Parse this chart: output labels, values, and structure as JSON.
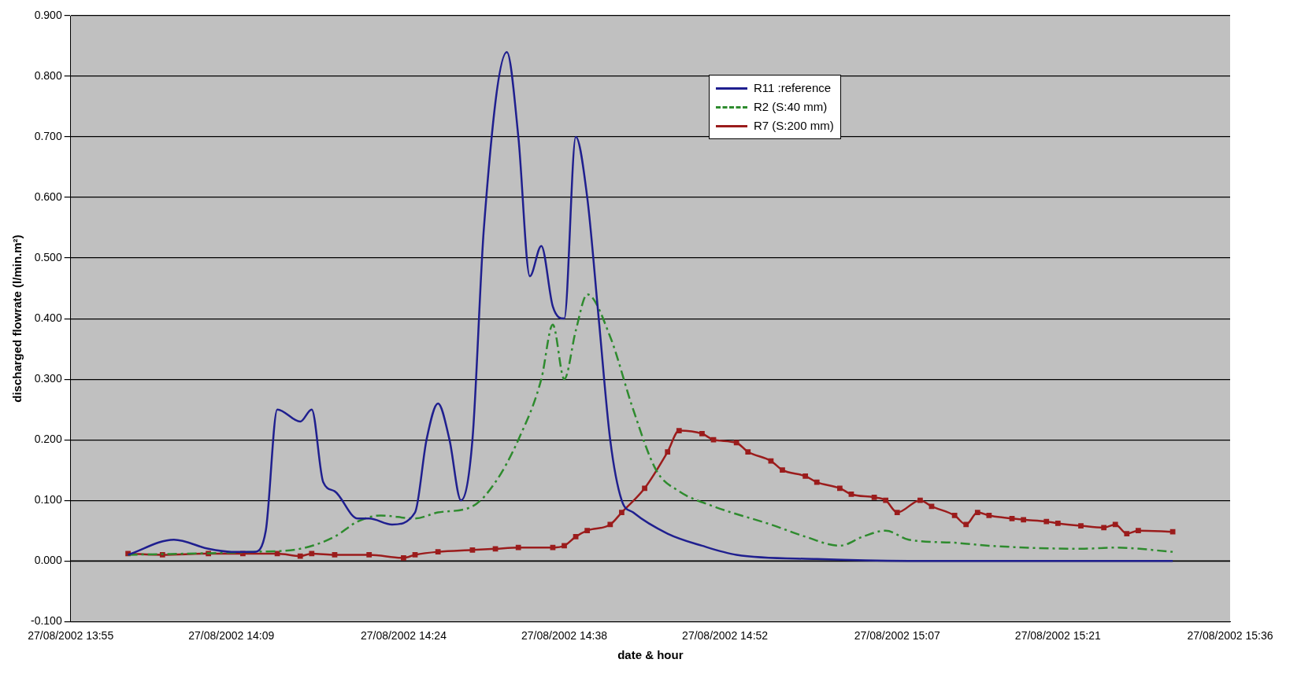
{
  "chart_data": {
    "type": "line",
    "xlabel": "date & hour",
    "ylabel": "discharged flowrate (l/min.m²)",
    "xlim": [
      "2002-08-27T13:55",
      "2002-08-27T15:36"
    ],
    "xticks": [
      {
        "value": "2002-08-27T13:55",
        "label": "27/08/2002 13:55"
      },
      {
        "value": "2002-08-27T14:09",
        "label": "27/08/2002 14:09"
      },
      {
        "value": "2002-08-27T14:24",
        "label": "27/08/2002 14:24"
      },
      {
        "value": "2002-08-27T14:38",
        "label": "27/08/2002 14:38"
      },
      {
        "value": "2002-08-27T14:52",
        "label": "27/08/2002 14:52"
      },
      {
        "value": "2002-08-27T15:07",
        "label": "27/08/2002 15:07"
      },
      {
        "value": "2002-08-27T15:21",
        "label": "27/08/2002 15:21"
      },
      {
        "value": "2002-08-27T15:36",
        "label": "27/08/2002 15:36"
      }
    ],
    "ylim": [
      -0.1,
      0.9
    ],
    "yticks": [
      {
        "value": -0.1,
        "label": "-0.100"
      },
      {
        "value": 0,
        "label": "0.000"
      },
      {
        "value": 0.1,
        "label": "0.100"
      },
      {
        "value": 0.2,
        "label": "0.200"
      },
      {
        "value": 0.3,
        "label": "0.300"
      },
      {
        "value": 0.4,
        "label": "0.400"
      },
      {
        "value": 0.5,
        "label": "0.500"
      },
      {
        "value": 0.6,
        "label": "0.600"
      },
      {
        "value": 0.7,
        "label": "0.700"
      },
      {
        "value": 0.8,
        "label": "0.800"
      },
      {
        "value": 0.9,
        "label": "0.900"
      }
    ],
    "grid": "y",
    "legend": "top",
    "series": [
      {
        "name": "R11 :reference",
        "color": "#1f1f8f",
        "marker": "none",
        "line_style": "solid",
        "x": [
          "2002-08-27T14:00",
          "2002-08-27T14:04",
          "2002-08-27T14:07",
          "2002-08-27T14:09",
          "2002-08-27T14:11",
          "2002-08-27T14:12",
          "2002-08-27T14:13",
          "2002-08-27T14:15",
          "2002-08-27T14:16",
          "2002-08-27T14:17",
          "2002-08-27T14:18",
          "2002-08-27T14:20",
          "2002-08-27T14:21",
          "2002-08-27T14:23",
          "2002-08-27T14:25",
          "2002-08-27T14:26",
          "2002-08-27T14:27",
          "2002-08-27T14:28",
          "2002-08-27T14:29",
          "2002-08-27T14:30",
          "2002-08-27T14:31",
          "2002-08-27T14:33",
          "2002-08-27T14:34",
          "2002-08-27T14:35",
          "2002-08-27T14:36",
          "2002-08-27T14:37",
          "2002-08-27T14:38",
          "2002-08-27T14:39",
          "2002-08-27T14:40",
          "2002-08-27T14:41",
          "2002-08-27T14:42",
          "2002-08-27T14:43",
          "2002-08-27T14:44",
          "2002-08-27T14:47",
          "2002-08-27T14:50",
          "2002-08-27T14:53",
          "2002-08-27T15:00",
          "2002-08-27T15:08",
          "2002-08-27T15:31"
        ],
        "values": [
          0.01,
          0.035,
          0.02,
          0.015,
          0.015,
          0.05,
          0.25,
          0.23,
          0.25,
          0.13,
          0.115,
          0.07,
          0.07,
          0.06,
          0.08,
          0.2,
          0.26,
          0.2,
          0.1,
          0.2,
          0.55,
          0.84,
          0.7,
          0.47,
          0.52,
          0.42,
          0.4,
          0.7,
          0.6,
          0.4,
          0.2,
          0.1,
          0.08,
          0.045,
          0.025,
          0.01,
          0.003,
          0,
          0
        ]
      },
      {
        "name": "R2 (S:40 mm)",
        "color": "#2e8b2e",
        "marker": "none",
        "line_style": "dashed",
        "x": [
          "2002-08-27T14:00",
          "2002-08-27T14:11",
          "2002-08-27T14:15",
          "2002-08-27T14:18",
          "2002-08-27T14:20",
          "2002-08-27T14:22",
          "2002-08-27T14:25",
          "2002-08-27T14:27",
          "2002-08-27T14:30",
          "2002-08-27T14:32",
          "2002-08-27T14:34",
          "2002-08-27T14:36",
          "2002-08-27T14:37",
          "2002-08-27T14:38",
          "2002-08-27T14:39",
          "2002-08-27T14:40",
          "2002-08-27T14:42",
          "2002-08-27T14:44",
          "2002-08-27T14:46",
          "2002-08-27T14:48",
          "2002-08-27T14:51",
          "2002-08-27T14:56",
          "2002-08-27T14:59",
          "2002-08-27T15:02",
          "2002-08-27T15:04",
          "2002-08-27T15:06",
          "2002-08-27T15:08",
          "2002-08-27T15:12",
          "2002-08-27T15:15",
          "2002-08-27T15:23",
          "2002-08-27T15:26",
          "2002-08-27T15:31"
        ],
        "values": [
          0.01,
          0.015,
          0.02,
          0.04,
          0.065,
          0.075,
          0.07,
          0.08,
          0.09,
          0.13,
          0.2,
          0.3,
          0.39,
          0.3,
          0.38,
          0.44,
          0.37,
          0.25,
          0.15,
          0.115,
          0.09,
          0.06,
          0.04,
          0.025,
          0.04,
          0.05,
          0.035,
          0.03,
          0.025,
          0.02,
          0.022,
          0.015
        ]
      },
      {
        "name": "R7 (S:200 mm)",
        "color": "#9b1c1c",
        "marker": "square",
        "line_style": "solid",
        "x": [
          "2002-08-27T14:00",
          "2002-08-27T14:03",
          "2002-08-27T14:07",
          "2002-08-27T14:10",
          "2002-08-27T14:13",
          "2002-08-27T14:15",
          "2002-08-27T14:16",
          "2002-08-27T14:18",
          "2002-08-27T14:21",
          "2002-08-27T14:24",
          "2002-08-27T14:25",
          "2002-08-27T14:27",
          "2002-08-27T14:30",
          "2002-08-27T14:32",
          "2002-08-27T14:34",
          "2002-08-27T14:37",
          "2002-08-27T14:38",
          "2002-08-27T14:39",
          "2002-08-27T14:40",
          "2002-08-27T14:42",
          "2002-08-27T14:43",
          "2002-08-27T14:45",
          "2002-08-27T14:47",
          "2002-08-27T14:48",
          "2002-08-27T14:50",
          "2002-08-27T14:51",
          "2002-08-27T14:53",
          "2002-08-27T14:54",
          "2002-08-27T14:56",
          "2002-08-27T14:57",
          "2002-08-27T14:59",
          "2002-08-27T15:00",
          "2002-08-27T15:02",
          "2002-08-27T15:03",
          "2002-08-27T15:05",
          "2002-08-27T15:06",
          "2002-08-27T15:07",
          "2002-08-27T15:09",
          "2002-08-27T15:10",
          "2002-08-27T15:12",
          "2002-08-27T15:13",
          "2002-08-27T15:14",
          "2002-08-27T15:15",
          "2002-08-27T15:17",
          "2002-08-27T15:18",
          "2002-08-27T15:20",
          "2002-08-27T15:21",
          "2002-08-27T15:23",
          "2002-08-27T15:25",
          "2002-08-27T15:26",
          "2002-08-27T15:27",
          "2002-08-27T15:28",
          "2002-08-27T15:31"
        ],
        "values": [
          0.012,
          0.01,
          0.012,
          0.012,
          0.012,
          0.008,
          0.012,
          0.01,
          0.01,
          0.005,
          0.01,
          0.015,
          0.018,
          0.02,
          0.022,
          0.022,
          0.025,
          0.04,
          0.05,
          0.06,
          0.08,
          0.12,
          0.18,
          0.215,
          0.21,
          0.2,
          0.195,
          0.18,
          0.165,
          0.15,
          0.14,
          0.13,
          0.12,
          0.11,
          0.105,
          0.1,
          0.08,
          0.1,
          0.09,
          0.075,
          0.06,
          0.08,
          0.075,
          0.07,
          0.068,
          0.065,
          0.062,
          0.058,
          0.055,
          0.06,
          0.045,
          0.05,
          0.048
        ]
      }
    ]
  }
}
